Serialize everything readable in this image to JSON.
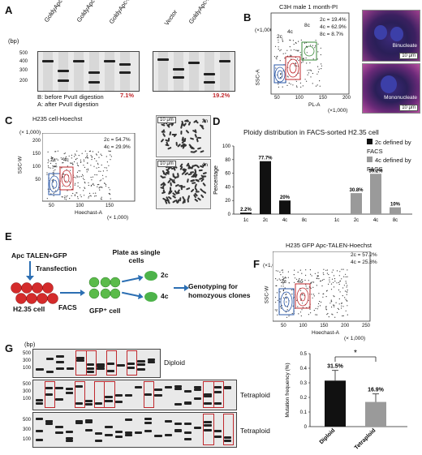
{
  "panel_a": {
    "letter": "A",
    "bp_label": "(bp)",
    "ladder": [
      "500",
      "400",
      "300",
      "200"
    ],
    "left_lanes": [
      "GoldyApc-L",
      "GoldyApc-R",
      "GoldyApc-L+R"
    ],
    "right_lanes": [
      "Vector",
      "GoldyApc-L+R"
    ],
    "lane_letters": [
      "B",
      "A"
    ],
    "pct_left": "7.1%",
    "pct_right": "19.2%",
    "legend_b": "B: before PvuII digestion",
    "legend_a": "A: after PvuII digestion"
  },
  "panel_b": {
    "letter": "B",
    "title": "C3H male 1 month-PI",
    "y_label": "SSC-A",
    "y_unit": "(×1,000)",
    "x_label": "PL-A",
    "x_unit": "(×1,000)",
    "x_ticks": [
      "50",
      "100",
      "150",
      "200"
    ],
    "y_ticks": [
      "200",
      "150",
      "100",
      "50"
    ],
    "gates": [
      "2c",
      "4c",
      "8c"
    ],
    "stats": [
      "2c = 19.4%",
      "4c = 62.9%",
      "8c = 8.7%"
    ],
    "img_top_label": "Binucleate",
    "img_bottom_label": "Mononucleate",
    "scale": "10 μm"
  },
  "panel_c": {
    "letter": "C",
    "title": "H235 cell-Hoechst",
    "y_label": "SSC-W",
    "y_unit": "(× 1,000)",
    "x_label": "Hoechast-A",
    "x_unit": "(× 1,000)",
    "x_ticks": [
      "50",
      "100",
      "150"
    ],
    "y_ticks": [
      "200",
      "150",
      "100",
      "50"
    ],
    "gates": [
      "2c",
      "4c"
    ],
    "stats": [
      "2c = 54.7%",
      "4c = 29.9%"
    ],
    "karyo_top": "2n",
    "karyo_bottom": "4n",
    "scale": "10 μm"
  },
  "panel_d": {
    "letter": "D",
    "legend": [
      "2c defined by FACS",
      "4c defined by FACS"
    ],
    "colors": {
      "black": "#111111",
      "gray": "#9a9a9a"
    }
  },
  "panel_e": {
    "letter": "E",
    "step1": "Apc TALEN+GFP",
    "step2": "Transfection",
    "cell1": "H2.35 cell",
    "facs": "FACS",
    "cell2": "GFP⁺ cell",
    "plate": "Plate as single cells",
    "out1": "2c",
    "out2": "4c",
    "genotype": "Genotyping for homozyous clones"
  },
  "panel_f": {
    "letter": "F",
    "title": "H235 GFP Apc-TALEN-Hoechst",
    "y_label": "SSC-W",
    "y_unit": "(×1,000)",
    "x_label": "Hoechast-A",
    "x_unit": "(× 1,000)",
    "x_ticks": [
      "50",
      "100",
      "150",
      "200",
      "250"
    ],
    "y_ticks": [
      "200",
      "150",
      "100",
      "50"
    ],
    "gates": [
      "2c",
      "4c"
    ],
    "stats": [
      "2c = 57.2%",
      "4c = 25.8%"
    ]
  },
  "panel_g": {
    "letter": "G",
    "bp_label": "(bp)",
    "ladder1": [
      "500",
      "300",
      "100"
    ],
    "ladder2": [
      "500",
      "300",
      "100"
    ],
    "ladder3": [
      "500",
      "300",
      "100"
    ],
    "gel1_label": "Diploid",
    "gel2_label": "Tetraploid",
    "gel3_label": "Tetraploid",
    "sig": "*"
  },
  "chart_data": [
    {
      "type": "bar",
      "ylabel": "Percentage",
      "ylim": [
        0,
        100
      ],
      "yticks": [
        "0",
        "20",
        "40",
        "60",
        "80",
        "100"
      ],
      "categories": [
        "1c",
        "2c",
        "4c",
        "8c",
        "1c",
        "2c",
        "4c",
        "8c"
      ],
      "series": [
        {
          "name": "2c defined by FACS",
          "values": [
            2.2,
            77.7,
            20,
            0,
            null,
            null,
            null,
            null
          ],
          "labels": [
            "2.2%",
            "77.7%",
            "20%",
            "",
            "",
            "",
            "",
            ""
          ]
        },
        {
          "name": "4c defined by FACS",
          "values": [
            null,
            null,
            null,
            null,
            0,
            30.8,
            59.2,
            10
          ],
          "labels": [
            "",
            "",
            "",
            "",
            "",
            "30.8%",
            "59.2%",
            "10%"
          ]
        }
      ],
      "title": "Ploidy distribution in FACS-sorted H2.35 cell",
      "legend": "top-right"
    },
    {
      "type": "bar",
      "ylabel": "Mutation frequency (%)",
      "ylim": [
        0,
        0.5
      ],
      "yticks": [
        "0",
        "0.1",
        "0.2",
        "0.3",
        "0.4",
        "0.5"
      ],
      "categories": [
        "Diploid",
        "Tetraploid"
      ],
      "values": [
        0.315,
        0.169
      ],
      "errors": [
        0.07,
        0.055
      ],
      "labels": [
        "31.5%",
        "16.9%"
      ]
    }
  ]
}
